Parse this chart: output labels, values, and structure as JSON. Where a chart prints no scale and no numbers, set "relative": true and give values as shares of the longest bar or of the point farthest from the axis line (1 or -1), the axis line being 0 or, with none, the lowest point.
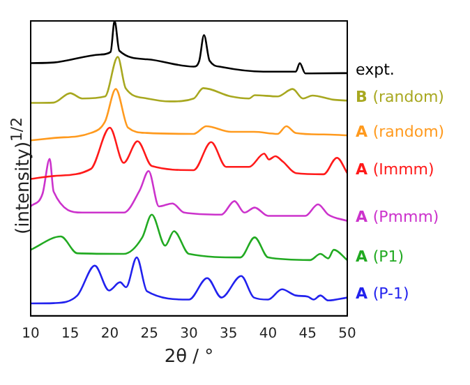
{
  "chart_data": {
    "type": "line",
    "relative": true,
    "xlabel": "2θ / °",
    "ylabel": "(intensity)$^{1/2}$",
    "xlim": [
      10,
      50
    ],
    "xticks": [
      10,
      15,
      20,
      25,
      30,
      35,
      40,
      45,
      50
    ],
    "grid": false,
    "legend": false,
    "marker": "none",
    "line_style": "solid",
    "series": [
      {
        "name": "expt.",
        "color": "#000000",
        "x": [
          10,
          12.9,
          18.8,
          20.1,
          20.6,
          21.2,
          24.7,
          30.6,
          31.3,
          31.9,
          32.6,
          34.1,
          39.4,
          43.5,
          44.0,
          44.7,
          50
        ],
        "values": [
          0.857,
          0.859,
          0.886,
          0.895,
          1.0,
          0.899,
          0.87,
          0.845,
          0.865,
          0.952,
          0.865,
          0.844,
          0.828,
          0.828,
          0.857,
          0.822,
          0.823
        ]
      },
      {
        "name": "B (random)",
        "color": "#a8a820",
        "x": [
          10,
          12.9,
          15.0,
          16.5,
          19.4,
          21.0,
          22.0,
          24.7,
          27.6,
          30.6,
          31.8,
          35.3,
          37.6,
          38.3,
          41.2,
          43.1,
          44.4,
          45.6,
          48.2,
          50
        ],
        "values": [
          0.722,
          0.723,
          0.755,
          0.737,
          0.744,
          0.878,
          0.772,
          0.737,
          0.727,
          0.737,
          0.772,
          0.744,
          0.737,
          0.748,
          0.744,
          0.769,
          0.737,
          0.747,
          0.733,
          0.73
        ]
      },
      {
        "name": "A (random)",
        "color": "#ff9a1e",
        "x": [
          10,
          12.9,
          17.6,
          19.4,
          20.75,
          22.3,
          24.7,
          30.6,
          32.2,
          35.3,
          38.2,
          41.2,
          42.3,
          43.5,
          47.0,
          50
        ],
        "values": [
          0.595,
          0.603,
          0.62,
          0.659,
          0.769,
          0.638,
          0.62,
          0.617,
          0.643,
          0.624,
          0.624,
          0.617,
          0.643,
          0.62,
          0.615,
          0.612
        ]
      },
      {
        "name": "A (Immm)",
        "color": "#ff1a1a",
        "x": [
          10,
          12.9,
          17.6,
          20.0,
          21.75,
          23.5,
          25.3,
          30.6,
          32.8,
          34.7,
          37.6,
          39.5,
          40.1,
          40.9,
          41.9,
          43.5,
          47.0,
          48.7,
          50
        ],
        "values": [
          0.464,
          0.474,
          0.498,
          0.638,
          0.519,
          0.592,
          0.508,
          0.494,
          0.589,
          0.505,
          0.505,
          0.55,
          0.53,
          0.541,
          0.522,
          0.484,
          0.48,
          0.536,
          0.484
        ]
      },
      {
        "name": "A (Pmmm)",
        "color": "#cc33cc",
        "x": [
          10,
          11.5,
          12.4,
          12.9,
          16.5,
          21.75,
          23.8,
          24.9,
          26.2,
          27.9,
          29.4,
          34.1,
          35.75,
          37.0,
          38.3,
          40.0,
          44.7,
          46.3,
          47.6,
          50
        ],
        "values": [
          0.371,
          0.414,
          0.532,
          0.421,
          0.35,
          0.35,
          0.427,
          0.491,
          0.371,
          0.381,
          0.35,
          0.343,
          0.389,
          0.35,
          0.367,
          0.339,
          0.339,
          0.378,
          0.343,
          0.322
        ]
      },
      {
        "name": "A (P1)",
        "color": "#22aa22",
        "x": [
          10,
          13.8,
          15.9,
          21.75,
          24.1,
          25.3,
          27.0,
          28.1,
          30.0,
          36.5,
          38.3,
          40.0,
          45.3,
          46.6,
          47.6,
          48.3,
          50
        ],
        "values": [
          0.224,
          0.269,
          0.212,
          0.21,
          0.266,
          0.343,
          0.238,
          0.287,
          0.21,
          0.198,
          0.266,
          0.198,
          0.189,
          0.21,
          0.195,
          0.224,
          0.189
        ]
      },
      {
        "name": "A (P-1)",
        "color": "#2222ee",
        "x": [
          10,
          12.9,
          15.9,
          18.1,
          19.9,
          21.3,
          22.05,
          23.4,
          24.7,
          30.0,
          32.3,
          34.1,
          36.6,
          38.2,
          40.0,
          41.75,
          43.5,
          45.0,
          45.75,
          46.6,
          47.6,
          50
        ],
        "values": [
          0.042,
          0.043,
          0.069,
          0.17,
          0.086,
          0.114,
          0.097,
          0.198,
          0.083,
          0.055,
          0.128,
          0.062,
          0.135,
          0.062,
          0.055,
          0.09,
          0.069,
          0.065,
          0.055,
          0.069,
          0.052,
          0.062
        ]
      }
    ]
  }
}
